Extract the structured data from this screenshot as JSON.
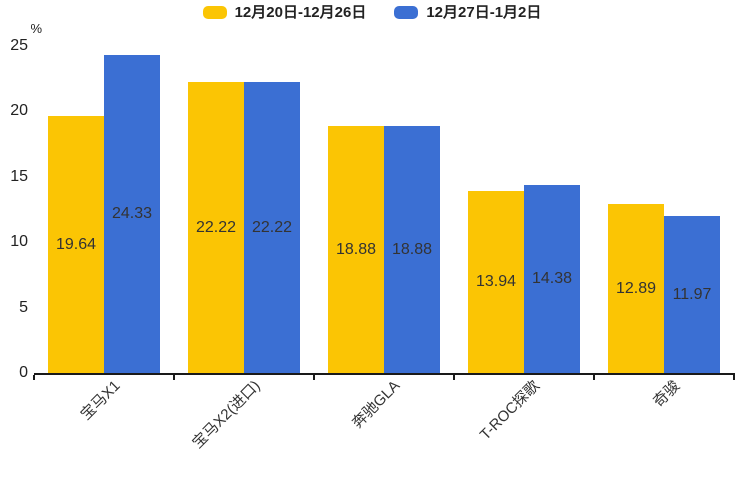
{
  "chart_data": {
    "type": "bar",
    "categories": [
      "宝马X1",
      "宝马X2(进口)",
      "奔驰GLA",
      "T-ROC探歌",
      "奇骏"
    ],
    "series": [
      {
        "name": "12月20日-12月26日",
        "color": "#FBC504",
        "values": [
          19.64,
          22.22,
          18.88,
          13.94,
          12.89
        ]
      },
      {
        "name": "12月27日-1月2日",
        "color": "#3B6FD3",
        "values": [
          24.33,
          22.22,
          18.88,
          14.38,
          11.97
        ]
      }
    ],
    "title": "",
    "xlabel": "",
    "ylabel": "%",
    "ylim": [
      0,
      25
    ],
    "yticks": [
      0,
      5,
      10,
      15,
      20,
      25
    ],
    "grid": false,
    "legend_position": "top-center",
    "value_labels": "inside-center",
    "value_label_decimals": 2
  },
  "colors": {
    "background": "#ffffff",
    "axis": "#1a1a1a",
    "tick_text": "#222222",
    "value_text": "#333333"
  }
}
